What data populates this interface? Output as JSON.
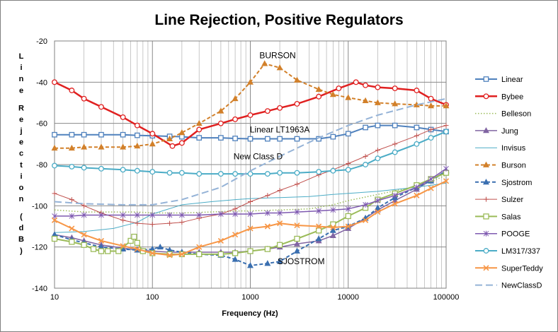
{
  "chart_data": {
    "type": "line",
    "title": "Line Rejection, Positive Regulators",
    "xlabel": "Frequency (Hz)",
    "ylabel": "Line Rejection (dB)",
    "x_scale": "log",
    "xlim": [
      10,
      100000
    ],
    "ylim": [
      -140,
      -20
    ],
    "x_ticks": [
      "10",
      "100",
      "1000",
      "10000",
      "100000"
    ],
    "y_ticks": [
      "-20",
      "-40",
      "-60",
      "-80",
      "-100",
      "-120",
      "-140"
    ],
    "grid": true,
    "legend": "right",
    "series": [
      {
        "name": "Linear",
        "color": "#4f81bd",
        "marker": "square",
        "dash": "solid",
        "width": 2,
        "x": [
          10,
          15,
          20,
          30,
          50,
          70,
          100,
          150,
          200,
          300,
          500,
          700,
          1000,
          1500,
          2000,
          3000,
          5000,
          7000,
          10000,
          15000,
          20000,
          30000,
          50000,
          70000,
          100000
        ],
        "y": [
          -65.5,
          -65.5,
          -65.5,
          -65.5,
          -65.5,
          -65.8,
          -66,
          -66.3,
          -66.5,
          -67,
          -67,
          -67.3,
          -67.5,
          -67.5,
          -67.5,
          -67.5,
          -67.5,
          -66.5,
          -65,
          -62,
          -61,
          -61,
          -62,
          -63,
          -64
        ]
      },
      {
        "name": "Bybee",
        "color": "#e02020",
        "marker": "circle",
        "dash": "solid",
        "width": 2.5,
        "x": [
          10,
          15,
          20,
          30,
          50,
          70,
          100,
          160,
          200,
          300,
          500,
          700,
          1000,
          1500,
          2000,
          3000,
          5000,
          8000,
          12000,
          15000,
          20000,
          30000,
          50000,
          70000,
          100000
        ],
        "y": [
          -40,
          -44,
          -48,
          -52,
          -57,
          -61,
          -65,
          -71,
          -69.5,
          -63,
          -60,
          -58,
          -56,
          -54,
          -52.5,
          -50.5,
          -47,
          -43,
          -40,
          -41.5,
          -42.5,
          -43,
          -44,
          -48,
          -51
        ]
      },
      {
        "name": "Belleson",
        "color": "#9bbb59",
        "marker": "none",
        "dash": "dot",
        "width": 1.5,
        "x": [
          10,
          20,
          40,
          70,
          100,
          200,
          400,
          700,
          1000,
          2000,
          4000,
          7000,
          10000,
          20000,
          40000,
          70000,
          100000
        ],
        "y": [
          -102,
          -103,
          -103,
          -103,
          -103.5,
          -103.5,
          -103,
          -102.5,
          -102.5,
          -102,
          -101.5,
          -99.5,
          -97.5,
          -94.5,
          -91.5,
          -88.5,
          -85
        ]
      },
      {
        "name": "Jung",
        "color": "#8064a2",
        "marker": "triangle",
        "dash": "solid",
        "width": 1.5,
        "x": [
          10,
          15,
          20,
          30,
          50,
          70,
          100,
          150,
          200,
          300,
          500,
          700,
          1000,
          1500,
          2000,
          3000,
          5000,
          7000,
          10000,
          15000,
          20000,
          30000,
          50000,
          70000,
          100000
        ],
        "y": [
          -114,
          -115.5,
          -117,
          -119,
          -120.5,
          -121.5,
          -122,
          -122.5,
          -122.5,
          -122.5,
          -122.5,
          -122.5,
          -122,
          -121,
          -120,
          -118.5,
          -117,
          -114.5,
          -111,
          -106,
          -102,
          -97.5,
          -92,
          -87.5,
          -83
        ]
      },
      {
        "name": "Invisus",
        "color": "#4bacc6",
        "marker": "none",
        "dash": "solid",
        "width": 1,
        "x": [
          10,
          20,
          40,
          70,
          100,
          200,
          400,
          700,
          1000,
          2000,
          4000,
          7000,
          10000,
          20000,
          40000,
          70000,
          100000
        ],
        "y": [
          -113,
          -112.5,
          -111,
          -108,
          -104,
          -99.5,
          -98,
          -97,
          -96.5,
          -96,
          -95.5,
          -94.5,
          -94,
          -93,
          -91.5,
          -90,
          -89
        ]
      },
      {
        "name": "Burson",
        "color": "#d2802a",
        "marker": "triangle",
        "dash": "dash",
        "width": 2,
        "x": [
          10,
          15,
          20,
          30,
          50,
          70,
          100,
          150,
          200,
          300,
          500,
          700,
          1000,
          1400,
          2000,
          3000,
          5000,
          7000,
          10000,
          15000,
          20000,
          30000,
          50000,
          70000,
          100000
        ],
        "y": [
          -72,
          -72,
          -71.5,
          -71.5,
          -71.5,
          -71,
          -70,
          -67.5,
          -64.5,
          -60,
          -54,
          -48,
          -40,
          -31,
          -33,
          -39,
          -43.5,
          -46,
          -47.5,
          -49,
          -50,
          -50.5,
          -51,
          -51.5,
          -51.5
        ]
      },
      {
        "name": "Sjostrom",
        "color": "#3a6fb0",
        "marker": "triangle",
        "dash": "dash",
        "width": 2,
        "x": [
          10,
          15,
          20,
          30,
          50,
          70,
          100,
          120,
          150,
          200,
          300,
          500,
          700,
          1000,
          1500,
          2000,
          3000,
          5000,
          7000,
          10000,
          15000,
          20000,
          30000,
          50000,
          70000,
          100000
        ],
        "y": [
          -114,
          -116.5,
          -118,
          -120,
          -121,
          -121.5,
          -121,
          -120,
          -121.5,
          -122.5,
          -123.5,
          -124,
          -126,
          -129,
          -128,
          -127,
          -122,
          -116,
          -112,
          -110,
          -106,
          -101,
          -96,
          -91,
          -88,
          -83
        ]
      },
      {
        "name": "Sulzer",
        "color": "#c0504d",
        "marker": "plus",
        "dash": "solid",
        "width": 1,
        "x": [
          10,
          15,
          20,
          30,
          50,
          70,
          100,
          150,
          200,
          300,
          500,
          700,
          1000,
          1500,
          2000,
          3000,
          5000,
          7000,
          10000,
          15000,
          20000,
          30000,
          50000,
          70000,
          100000
        ],
        "y": [
          -94,
          -97,
          -100,
          -103.5,
          -107,
          -108.5,
          -109,
          -108.5,
          -108,
          -106,
          -104,
          -101.5,
          -98,
          -95,
          -92.5,
          -89.5,
          -85,
          -82.5,
          -79.5,
          -76,
          -73,
          -70,
          -66,
          -63,
          -61
        ]
      },
      {
        "name": "Salas",
        "color": "#9bbb59",
        "marker": "open-square",
        "dash": "solid",
        "width": 2,
        "x": [
          10,
          15,
          20,
          25,
          30,
          35,
          45,
          60,
          65,
          70,
          80,
          100,
          150,
          200,
          300,
          500,
          700,
          1000,
          1500,
          2000,
          3000,
          5000,
          7000,
          10000,
          15000,
          20000,
          30000,
          50000,
          70000,
          100000
        ],
        "y": [
          -116,
          -117.5,
          -119,
          -121,
          -122,
          -122,
          -122,
          -117,
          -115,
          -118,
          -122,
          -123,
          -123.5,
          -123.5,
          -123.5,
          -123.5,
          -123,
          -122,
          -121,
          -119,
          -116,
          -112,
          -109,
          -105,
          -101,
          -97,
          -94,
          -90,
          -87,
          -84
        ]
      },
      {
        "name": "POOGE",
        "color": "#7e59b0",
        "marker": "star",
        "dash": "solid",
        "width": 1.5,
        "x": [
          10,
          15,
          20,
          30,
          50,
          70,
          100,
          150,
          200,
          300,
          500,
          700,
          1000,
          1500,
          2000,
          3000,
          5000,
          7000,
          10000,
          15000,
          20000,
          30000,
          50000,
          70000,
          100000
        ],
        "y": [
          -105,
          -105,
          -104.5,
          -104.5,
          -104.5,
          -104.5,
          -104.5,
          -104.5,
          -104.5,
          -104.5,
          -104,
          -104,
          -104,
          -103.5,
          -103.5,
          -103,
          -102.5,
          -102,
          -101.5,
          -99.5,
          -97.5,
          -95,
          -91,
          -87,
          -82
        ]
      },
      {
        "name": "LM317/337",
        "color": "#4bacc6",
        "marker": "circle",
        "dash": "solid",
        "width": 2,
        "x": [
          10,
          15,
          20,
          30,
          50,
          70,
          100,
          150,
          200,
          300,
          500,
          700,
          1000,
          1500,
          2000,
          3000,
          5000,
          7000,
          10000,
          15000,
          20000,
          30000,
          50000,
          70000,
          100000
        ],
        "y": [
          -80.5,
          -81,
          -81.5,
          -82,
          -82.5,
          -83,
          -83.5,
          -84,
          -84,
          -84.5,
          -84.5,
          -84.5,
          -84.5,
          -84.5,
          -84,
          -84,
          -83.5,
          -83,
          -82.5,
          -80,
          -77,
          -74,
          -70,
          -67,
          -64
        ]
      },
      {
        "name": "SuperTeddy",
        "color": "#f79646",
        "marker": "x",
        "dash": "solid",
        "width": 2,
        "x": [
          10,
          15,
          20,
          30,
          50,
          70,
          100,
          150,
          200,
          300,
          500,
          700,
          1000,
          1500,
          2000,
          3000,
          5000,
          7000,
          10000,
          15000,
          20000,
          30000,
          50000,
          70000,
          100000
        ],
        "y": [
          -107,
          -111,
          -114,
          -117,
          -119.5,
          -121,
          -123,
          -124,
          -123.5,
          -120,
          -117,
          -114,
          -111,
          -110,
          -108.5,
          -109.5,
          -110,
          -110.5,
          -110,
          -107,
          -103,
          -99,
          -95,
          -91.5,
          -88
        ]
      },
      {
        "name": "NewClassD",
        "color": "#95b3d7",
        "marker": "none",
        "dash": "longdash",
        "width": 2,
        "x": [
          10,
          20,
          50,
          100,
          200,
          500,
          1000,
          2000,
          5000,
          10000,
          20000,
          50000,
          100000
        ],
        "y": [
          -98,
          -99,
          -99.5,
          -99.5,
          -97,
          -91,
          -83,
          -76,
          -67,
          -61,
          -56,
          -51,
          -48
        ]
      }
    ],
    "annotations": [
      {
        "text": "BURSON",
        "x": 1900,
        "y": -27
      },
      {
        "text": "Linear LT1963A",
        "x": 2000,
        "y": -63
      },
      {
        "text": "New Class D",
        "x": 1200,
        "y": -76
      },
      {
        "text": "SJOSTROM",
        "x": 3300,
        "y": -127
      }
    ]
  }
}
